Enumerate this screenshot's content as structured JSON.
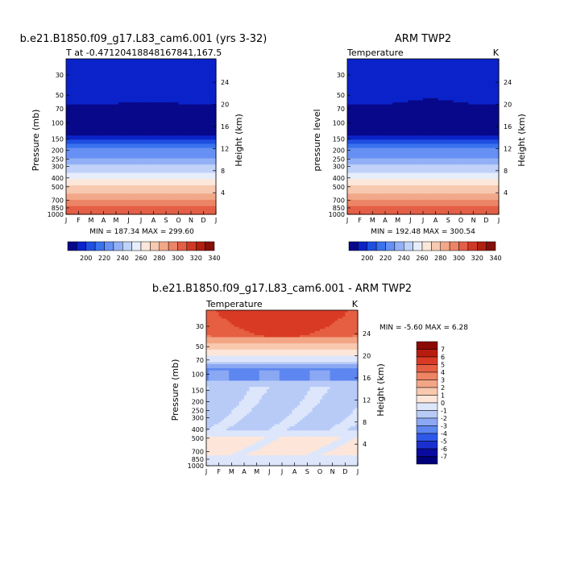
{
  "colors": {
    "full_palette": [
      "#08088a",
      "#0b23c9",
      "#1f4fe0",
      "#3a72ee",
      "#6690f3",
      "#93b0f6",
      "#c0d2f8",
      "#e6edfb",
      "#fce8da",
      "#f6c9b0",
      "#f2a888",
      "#ec8567",
      "#e35f46",
      "#cf3a27",
      "#b0200f",
      "#851008"
    ],
    "diff_palette": [
      "#00007a",
      "#0a0aa0",
      "#1a2fcf",
      "#2e58e8",
      "#5d86f0",
      "#8aa8f3",
      "#b8cbf7",
      "#dde6fb",
      "#fde6d9",
      "#f8c9ae",
      "#f3a686",
      "#ee8463",
      "#e65f42",
      "#d93a25",
      "#b81c0e",
      "#8a0a05"
    ]
  },
  "months": [
    "J",
    "F",
    "M",
    "A",
    "M",
    "J",
    "J",
    "A",
    "S",
    "O",
    "N",
    "D",
    "J"
  ],
  "chart_data": [
    {
      "type": "heatmap",
      "id": "model",
      "title": "b.e21.B1850.f09_g17.L83_cam6.001 (yrs 3-32)",
      "subtitle_left": "T at -0.47120418848167841,167.5",
      "subtitle_right": "",
      "ylabel": "Pressure (mb)",
      "ylabel_right": "Height (km)",
      "stats": "MIN = 187.34  MAX = 299.60",
      "yscale": "log",
      "pressure_ticks": [
        "30",
        "50",
        "70",
        "100",
        "150",
        "200",
        "250",
        "300",
        "400",
        "500",
        "700",
        "850",
        "1000"
      ],
      "height_ticks": [
        "24",
        "20",
        "16",
        "12",
        "8",
        "4"
      ],
      "ylim": [
        1000,
        20
      ],
      "colorbar_labels": [
        "200",
        "220",
        "240",
        "260",
        "280",
        "300",
        "320",
        "340"
      ],
      "levels": [
        190,
        195,
        200,
        205,
        210,
        220,
        230,
        240,
        250,
        260,
        270,
        280,
        290,
        300
      ],
      "profile": [
        [
          20,
          197
        ],
        [
          35,
          198
        ],
        [
          55,
          199
        ],
        [
          75,
          191
        ],
        [
          90,
          189
        ],
        [
          110,
          191
        ],
        [
          130,
          193
        ],
        [
          150,
          200
        ],
        [
          180,
          207
        ],
        [
          210,
          214
        ],
        [
          250,
          222
        ],
        [
          300,
          232
        ],
        [
          350,
          241
        ],
        [
          400,
          249
        ],
        [
          500,
          262
        ],
        [
          600,
          272
        ],
        [
          700,
          281
        ],
        [
          800,
          289
        ],
        [
          900,
          295
        ],
        [
          1000,
          299
        ]
      ]
    },
    {
      "type": "heatmap",
      "id": "obs",
      "title": "ARM TWP2",
      "subtitle_left": "Temperature",
      "subtitle_right": "K",
      "ylabel": "pressure level",
      "ylabel_right": "Height (km)",
      "stats": "MIN = 192.48  MAX = 300.54",
      "yscale": "log",
      "pressure_ticks": [
        "30",
        "50",
        "70",
        "100",
        "150",
        "200",
        "250",
        "300",
        "400",
        "500",
        "700",
        "850",
        "1000"
      ],
      "height_ticks": [
        "24",
        "20",
        "16",
        "12",
        "8",
        "4"
      ],
      "ylim": [
        1000,
        20
      ],
      "colorbar_labels": [
        "200",
        "220",
        "240",
        "260",
        "280",
        "300",
        "320",
        "340"
      ],
      "levels": [
        190,
        195,
        200,
        205,
        210,
        220,
        230,
        240,
        250,
        260,
        270,
        280,
        290,
        300
      ],
      "profile": [
        [
          20,
          197
        ],
        [
          35,
          198
        ],
        [
          55,
          198
        ],
        [
          75,
          192
        ],
        [
          90,
          190
        ],
        [
          110,
          191
        ],
        [
          130,
          193
        ],
        [
          150,
          200
        ],
        [
          180,
          207
        ],
        [
          210,
          214
        ],
        [
          250,
          222
        ],
        [
          300,
          232
        ],
        [
          350,
          241
        ],
        [
          400,
          249
        ],
        [
          500,
          262
        ],
        [
          600,
          272
        ],
        [
          700,
          281
        ],
        [
          800,
          289
        ],
        [
          900,
          296
        ],
        [
          1000,
          300
        ]
      ]
    },
    {
      "type": "heatmap",
      "id": "diff",
      "title": "b.e21.B1850.f09_g17.L83_cam6.001 - ARM TWP2",
      "subtitle_left": "Temperature",
      "subtitle_right": "K",
      "ylabel": "Pressure (mb)",
      "ylabel_right": "Height (km)",
      "stats": "MIN = -5.60 MAX =  6.28",
      "yscale": "log",
      "pressure_ticks": [
        "30",
        "50",
        "70",
        "100",
        "150",
        "200",
        "250",
        "300",
        "400",
        "500",
        "700",
        "850",
        "1000"
      ],
      "height_ticks": [
        "24",
        "20",
        "16",
        "12",
        "8",
        "4"
      ],
      "ylim": [
        1000,
        20
      ],
      "colorbar_labels": [
        "7",
        "6",
        "5",
        "4",
        "3",
        "2",
        "1",
        "0",
        "-1",
        "-2",
        "-3",
        "-4",
        "-5",
        "-6",
        "-7"
      ],
      "levels": [
        -7,
        -6,
        -5,
        -4,
        -3,
        -2,
        -1,
        0,
        1,
        2,
        3,
        4,
        5,
        6,
        7
      ]
    }
  ]
}
